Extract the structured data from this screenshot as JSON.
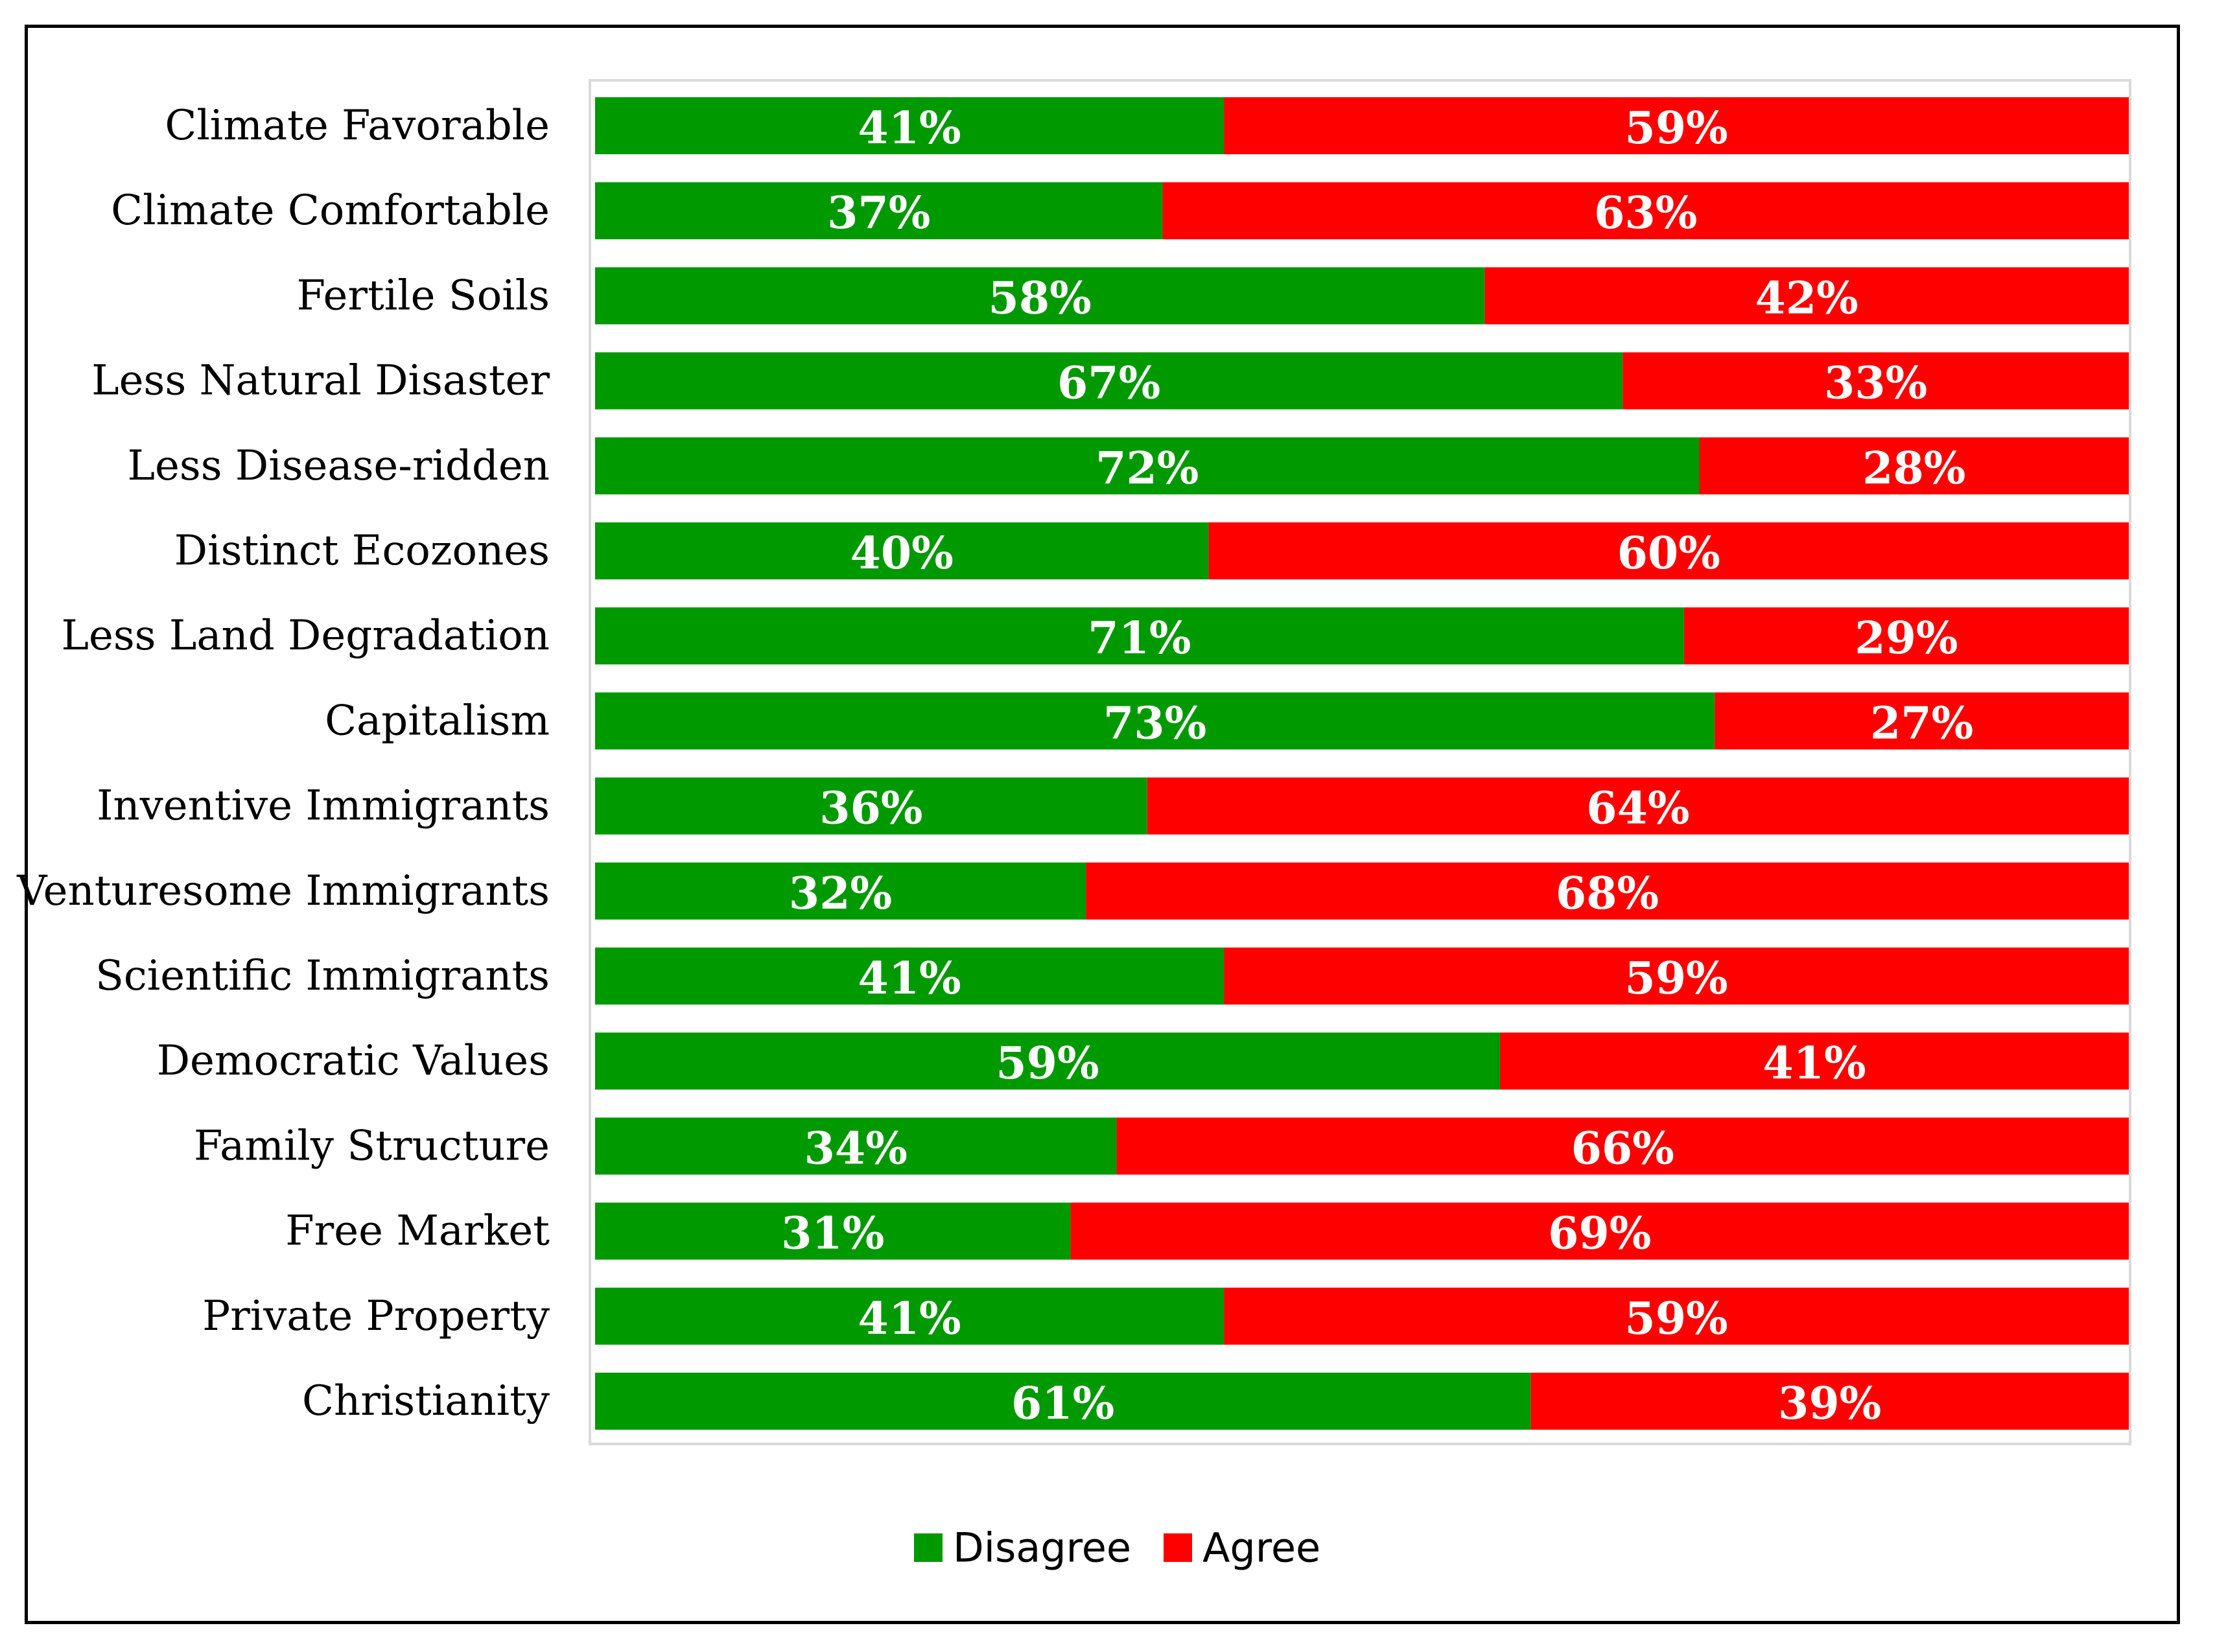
{
  "chart_data": {
    "type": "bar",
    "orientation": "horizontal",
    "stacked": true,
    "normalized": true,
    "categories": [
      "Climate Favorable",
      "Climate Comfortable",
      "Fertile Soils",
      "Less Natural Disaster",
      "Less Disease-ridden",
      "Distinct Ecozones",
      "Less Land Degradation",
      "Capitalism",
      "Inventive Immigrants",
      "Venturesome Immigrants",
      "Scientific Immigrants",
      "Democratic Values",
      "Family Structure",
      "Free Market",
      "Private Property",
      "Christianity"
    ],
    "series": [
      {
        "name": "Disagree",
        "color": "#009900",
        "values": [
          41,
          37,
          58,
          67,
          72,
          40,
          71,
          73,
          36,
          32,
          41,
          59,
          34,
          31,
          41,
          61
        ],
        "labels": [
          "41%",
          "37%",
          "58%",
          "67%",
          "72%",
          "40%",
          "71%",
          "73%",
          "36%",
          "32%",
          "41%",
          "59%",
          "34%",
          "31%",
          "41%",
          "61%"
        ]
      },
      {
        "name": "Agree",
        "color": "#ff0000",
        "values": [
          59,
          63,
          42,
          33,
          28,
          60,
          29,
          27,
          64,
          68,
          59,
          41,
          66,
          69,
          59,
          39
        ],
        "labels": [
          "59%",
          "63%",
          "42%",
          "33%",
          "28%",
          "60%",
          "29%",
          "27%",
          "64%",
          "68%",
          "59%",
          "41%",
          "66%",
          "69%",
          "59%",
          "39%"
        ]
      }
    ],
    "xlim": [
      0,
      100
    ],
    "grid": false,
    "legend_position": "bottom"
  }
}
